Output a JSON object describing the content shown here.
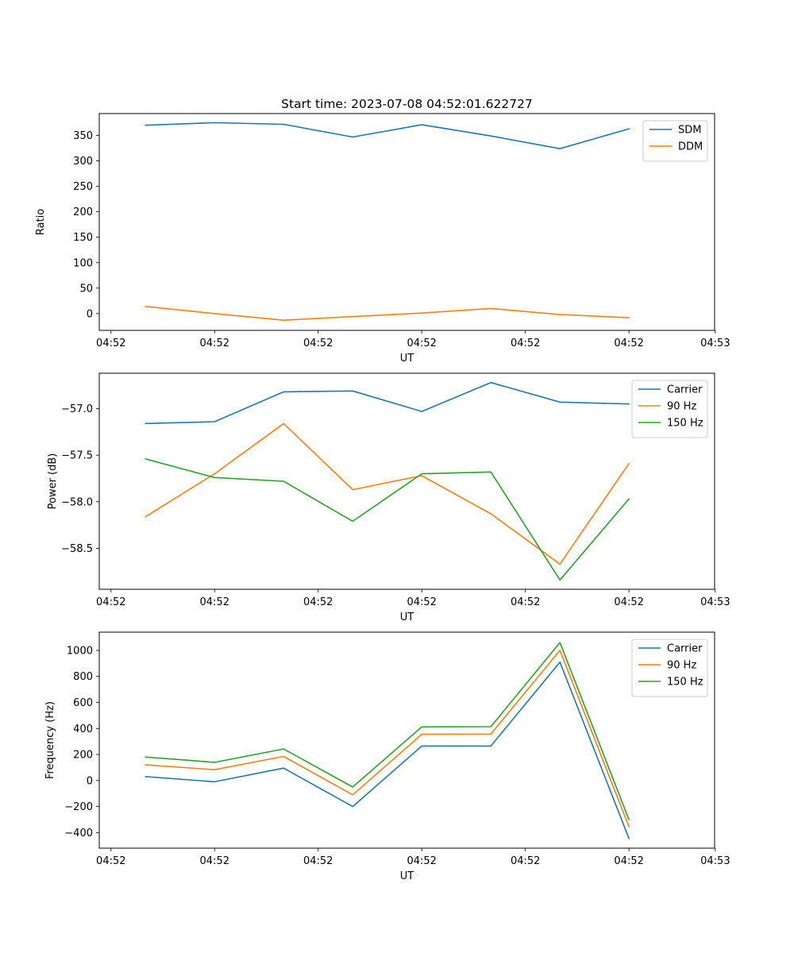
{
  "chart_data": [
    {
      "type": "line",
      "title": "Start time: 2023-07-08 04:52:01.622727",
      "xlabel": "UT",
      "ylabel": "Ratio",
      "x": [
        1,
        2,
        3,
        4,
        5,
        6,
        7,
        8
      ],
      "xlim": [
        0.33,
        9.24
      ],
      "xticks": [
        {
          "value": 0.5,
          "label": "04:52"
        },
        {
          "value": 2,
          "label": "04:52"
        },
        {
          "value": 3.5,
          "label": "04:52"
        },
        {
          "value": 5,
          "label": "04:52"
        },
        {
          "value": 6.5,
          "label": "04:52"
        },
        {
          "value": 8,
          "label": "04:52"
        },
        {
          "value": 9.25,
          "label": "04:53"
        }
      ],
      "ylim": [
        -33,
        393
      ],
      "yticks": [
        0,
        50,
        100,
        150,
        200,
        250,
        300,
        350
      ],
      "legend_position": "top-right",
      "series": [
        {
          "name": "SDM",
          "color": "#1f77b4",
          "values": [
            370,
            375,
            372,
            347,
            371,
            349,
            324,
            363
          ]
        },
        {
          "name": "DDM",
          "color": "#ff7f0e",
          "values": [
            14,
            0,
            -13,
            -6,
            1,
            10,
            -2,
            -8
          ]
        }
      ]
    },
    {
      "type": "line",
      "title": "",
      "xlabel": "UT",
      "ylabel": "Power (dB)",
      "x": [
        1,
        2,
        3,
        4,
        5,
        6,
        7,
        8
      ],
      "xlim": [
        0.33,
        9.24
      ],
      "xticks": [
        {
          "value": 0.5,
          "label": "04:52"
        },
        {
          "value": 2,
          "label": "04:52"
        },
        {
          "value": 3.5,
          "label": "04:52"
        },
        {
          "value": 5,
          "label": "04:52"
        },
        {
          "value": 6.5,
          "label": "04:52"
        },
        {
          "value": 8,
          "label": "04:52"
        },
        {
          "value": 9.25,
          "label": "04:53"
        }
      ],
      "ylim": [
        -58.94,
        -56.62
      ],
      "yticks": [
        {
          "value": -58.5,
          "label": "−58.5"
        },
        {
          "value": -58.0,
          "label": "−58.0"
        },
        {
          "value": -57.5,
          "label": "−57.5"
        },
        {
          "value": -57.0,
          "label": "−57.0"
        }
      ],
      "legend_position": "top-right",
      "series": [
        {
          "name": "Carrier",
          "color": "#1f77b4",
          "values": [
            -57.16,
            -57.14,
            -56.82,
            -56.81,
            -57.03,
            -56.72,
            -56.93,
            -56.95
          ]
        },
        {
          "name": "90 Hz",
          "color": "#ff7f0e",
          "values": [
            -58.16,
            -57.7,
            -57.16,
            -57.87,
            -57.72,
            -58.13,
            -58.67,
            -57.59
          ]
        },
        {
          "name": "150 Hz",
          "color": "#2ca02c",
          "values": [
            -57.54,
            -57.74,
            -57.78,
            -58.21,
            -57.7,
            -57.68,
            -58.84,
            -57.97
          ]
        }
      ]
    },
    {
      "type": "line",
      "title": "",
      "xlabel": "UT",
      "ylabel": "Frequency (Hz)",
      "x": [
        1,
        2,
        3,
        4,
        5,
        6,
        7,
        8
      ],
      "xlim": [
        0.33,
        9.24
      ],
      "xticks": [
        {
          "value": 0.5,
          "label": "04:52"
        },
        {
          "value": 2,
          "label": "04:52"
        },
        {
          "value": 3.5,
          "label": "04:52"
        },
        {
          "value": 5,
          "label": "04:52"
        },
        {
          "value": 6.5,
          "label": "04:52"
        },
        {
          "value": 8,
          "label": "04:52"
        },
        {
          "value": 9.25,
          "label": "04:53"
        }
      ],
      "ylim": [
        -520,
        1140
      ],
      "yticks": [
        {
          "value": -400,
          "label": "−400"
        },
        {
          "value": -200,
          "label": "−200"
        },
        {
          "value": 0,
          "label": "0"
        },
        {
          "value": 200,
          "label": "200"
        },
        {
          "value": 400,
          "label": "400"
        },
        {
          "value": 600,
          "label": "600"
        },
        {
          "value": 800,
          "label": "800"
        },
        {
          "value": 1000,
          "label": "1000"
        }
      ],
      "legend_position": "top-right",
      "series": [
        {
          "name": "Carrier",
          "color": "#1f77b4",
          "values": [
            30,
            -10,
            95,
            -200,
            265,
            265,
            910,
            -445
          ]
        },
        {
          "name": "90 Hz",
          "color": "#ff7f0e",
          "values": [
            120,
            83,
            185,
            -110,
            355,
            357,
            1000,
            -355
          ]
        },
        {
          "name": "150 Hz",
          "color": "#2ca02c",
          "values": [
            180,
            140,
            242,
            -50,
            412,
            414,
            1060,
            -300
          ]
        }
      ]
    }
  ]
}
